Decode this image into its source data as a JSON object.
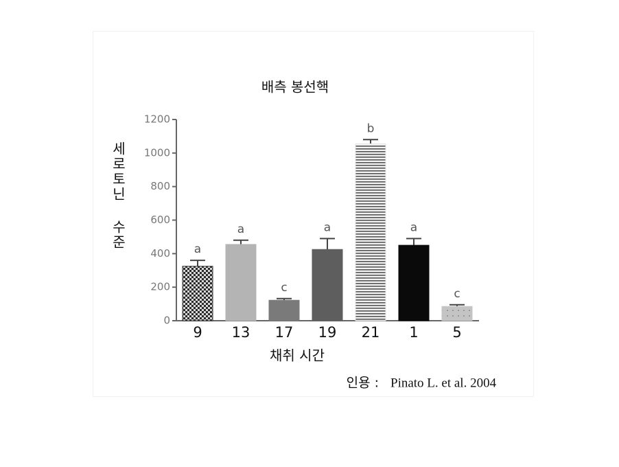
{
  "chart_data": {
    "type": "bar",
    "title": "배측 봉선핵",
    "xlabel": "채취 시간",
    "ylabel": "세로토닌 수준",
    "categories": [
      "9",
      "13",
      "17",
      "19",
      "21",
      "1",
      "5"
    ],
    "values": [
      325,
      455,
      122,
      425,
      1055,
      450,
      85
    ],
    "errors": [
      35,
      25,
      10,
      65,
      25,
      40,
      10
    ],
    "annotations": [
      "a",
      "a",
      "c",
      "a",
      "b",
      "a",
      "c"
    ],
    "colors": [
      "#3a3a3a",
      "#b4b4b4",
      "#7a7a7a",
      "#5e5e5e",
      "#e6e6e6",
      "#0a0a0a",
      "#c4c4c4"
    ],
    "patterns": [
      "checker",
      "none",
      "none",
      "none",
      "stripes",
      "none",
      "dots"
    ],
    "ylim": [
      0,
      1200
    ],
    "yticks": [
      0,
      200,
      400,
      600,
      800,
      1000,
      1200
    ],
    "source_prefix": "인용 :",
    "source": "Pinato L. et al. 2004"
  }
}
